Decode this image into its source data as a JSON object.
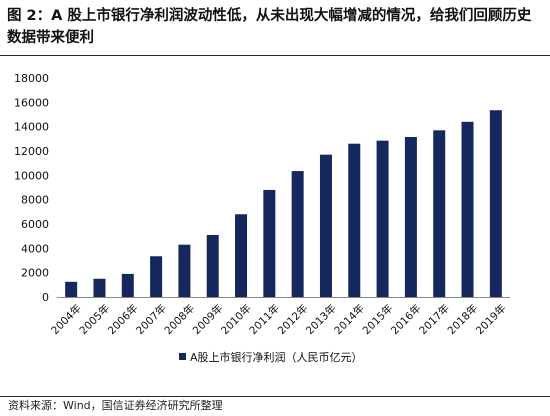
{
  "figure": {
    "title": "图 2：A 股上市银行净利润波动性低，从未出现大幅增减的情况，给我们回顾历史数据带来便利",
    "source": "资料来源：Wind，国信证券经济研究所整理"
  },
  "colors": {
    "bar": "#14285e",
    "rule": "#2b2b2b"
  },
  "chart_data": {
    "type": "bar",
    "categories": [
      "2004年",
      "2005年",
      "2006年",
      "2007年",
      "2008年",
      "2009年",
      "2010年",
      "2011年",
      "2012年",
      "2013年",
      "2014年",
      "2015年",
      "2016年",
      "2017年",
      "2018年",
      "2019年"
    ],
    "series": [
      {
        "name": "A股上市银行净利润（人民币亿元）",
        "values": [
          1250,
          1500,
          1900,
          3350,
          4300,
          5100,
          6800,
          8800,
          10350,
          11700,
          12600,
          12850,
          13150,
          13700,
          14400,
          15350
        ]
      }
    ],
    "yticks": [
      0,
      2000,
      4000,
      6000,
      8000,
      10000,
      12000,
      14000,
      16000,
      18000
    ],
    "ylim": [
      0,
      18000
    ],
    "grid": false,
    "legend_position": "bottom-center"
  }
}
